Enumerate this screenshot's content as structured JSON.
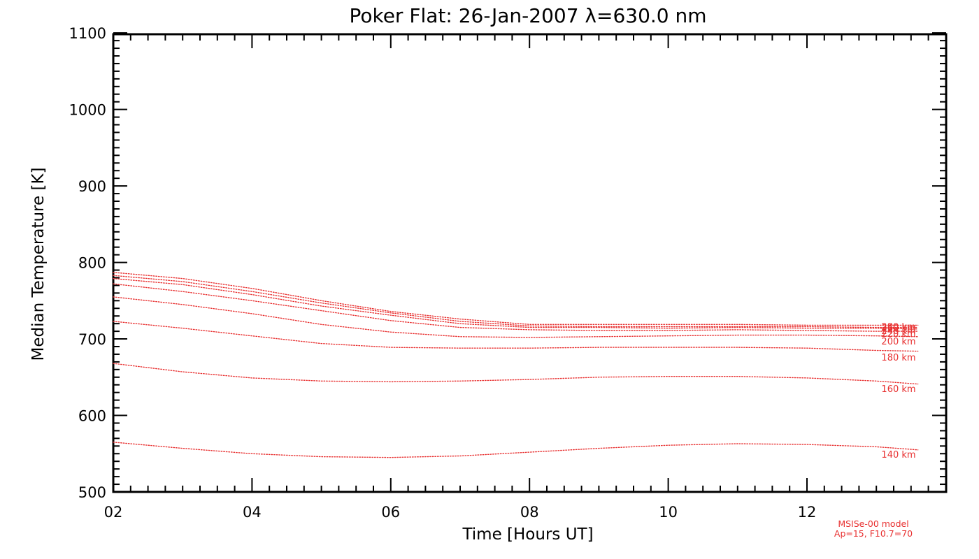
{
  "chart_data": {
    "type": "line",
    "title": "Poker Flat: 26-Jan-2007 λ=630.0 nm",
    "xlabel": "Time [Hours UT]",
    "ylabel": "Median Temperature [K]",
    "xlim": [
      2,
      14
    ],
    "ylim": [
      500,
      1110
    ],
    "x_ticks": [
      2,
      4,
      6,
      8,
      10,
      12
    ],
    "x_tick_labels": [
      "02",
      "04",
      "06",
      "08",
      "10",
      "12"
    ],
    "y_ticks": [
      500,
      600,
      700,
      800,
      900,
      1000,
      1100
    ],
    "y_tick_labels": [
      "500",
      "600",
      "700",
      "800",
      "900",
      "1000",
      "1100"
    ],
    "line_color": "#e83030",
    "x": [
      2,
      3,
      4,
      5,
      6,
      7,
      8,
      9,
      10,
      11,
      12,
      13,
      13.6
    ],
    "series": [
      {
        "name": "140 km",
        "label": "140 km",
        "values": [
          565,
          557,
          550,
          546,
          545,
          547,
          552,
          557,
          561,
          563,
          562,
          559,
          555
        ]
      },
      {
        "name": "160 km",
        "label": "160 km",
        "values": [
          668,
          657,
          649,
          645,
          644,
          645,
          647,
          650,
          651,
          651,
          649,
          645,
          641
        ]
      },
      {
        "name": "180 km",
        "label": "180 km",
        "values": [
          723,
          714,
          704,
          694,
          689,
          688,
          688,
          689,
          689,
          689,
          688,
          685,
          684
        ]
      },
      {
        "name": "200 km",
        "label": "200 km",
        "values": [
          755,
          745,
          733,
          719,
          709,
          703,
          702,
          703,
          704,
          705,
          705,
          704,
          703
        ]
      },
      {
        "name": "220 km",
        "label": "220 km",
        "values": [
          772,
          762,
          750,
          737,
          724,
          715,
          712,
          711,
          711,
          712,
          711,
          710,
          710
        ]
      },
      {
        "name": "240 km",
        "label": "240 km",
        "values": [
          779,
          771,
          758,
          743,
          731,
          720,
          715,
          715,
          714,
          715,
          714,
          714,
          713
        ]
      },
      {
        "name": "260 km",
        "label": "260 km",
        "values": [
          783,
          775,
          762,
          747,
          734,
          723,
          717,
          716,
          716,
          716,
          716,
          715,
          715
        ]
      },
      {
        "name": "280 km",
        "label": "280 km",
        "values": [
          787,
          779,
          766,
          750,
          736,
          726,
          719,
          719,
          719,
          719,
          718,
          718,
          718
        ]
      }
    ],
    "labels_at_right": [
      "140 km",
      "160 km",
      "180 km",
      "200 km",
      "220 km",
      "240 km",
      "260 km",
      "280 km"
    ],
    "annotation": [
      "MSISe-00 model",
      "Ap=15, F10.7=70"
    ]
  }
}
